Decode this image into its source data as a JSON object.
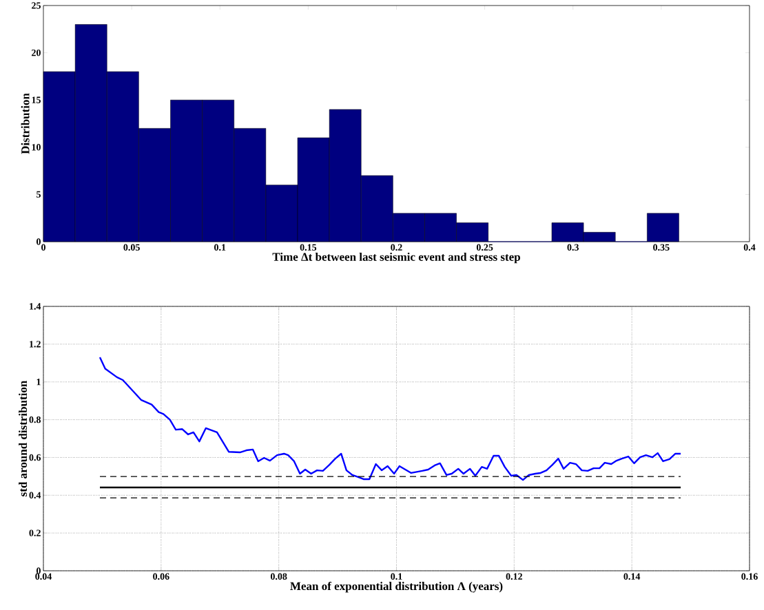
{
  "chart_data": [
    {
      "type": "histogram",
      "xlabel": "Time Δt between last seismic event and stress step",
      "ylabel": "Distribution",
      "bins": [
        0,
        0.018,
        0.036,
        0.054,
        0.072,
        0.09,
        0.108,
        0.126,
        0.144,
        0.162,
        0.18,
        0.198,
        0.216,
        0.234,
        0.252,
        0.27,
        0.288,
        0.306,
        0.324,
        0.342,
        0.36
      ],
      "values": [
        18,
        23,
        18,
        12,
        15,
        15,
        12,
        6,
        11,
        14,
        7,
        3,
        3,
        2,
        0,
        0,
        2,
        1,
        0,
        3
      ],
      "color": "#000080",
      "xlim": [
        0,
        0.4
      ],
      "xticks": [
        0,
        0.05,
        0.1,
        0.15,
        0.2,
        0.25,
        0.3,
        0.35,
        0.4
      ],
      "ylim": [
        0,
        25
      ],
      "yticks": [
        0,
        5,
        10,
        15,
        20,
        25
      ],
      "grid": false
    },
    {
      "type": "line",
      "xlabel": "Mean of exponential distribution Λ (years)",
      "ylabel": "std around distribution",
      "series": [
        {
          "color": "#0000ff",
          "line_style": "solid",
          "x": [
            0.0496,
            0.0505,
            0.0525,
            0.0535,
            0.0566,
            0.0584,
            0.0596,
            0.0604,
            0.0615,
            0.0625,
            0.0636,
            0.0646,
            0.0655,
            0.0665,
            0.0676,
            0.0695,
            0.0715,
            0.0734,
            0.0745,
            0.0756,
            0.0765,
            0.0775,
            0.0785,
            0.0797,
            0.0809,
            0.0816,
            0.0826,
            0.0836,
            0.0845,
            0.0855,
            0.0865,
            0.0875,
            0.0886,
            0.0896,
            0.0906,
            0.0915,
            0.0925,
            0.0935,
            0.0944,
            0.0954,
            0.0965,
            0.0975,
            0.0985,
            0.0996,
            0.1005,
            0.1025,
            0.1044,
            0.1054,
            0.1065,
            0.1074,
            0.1085,
            0.1094,
            0.1105,
            0.1114,
            0.1125,
            0.1134,
            0.1145,
            0.1154,
            0.1165,
            0.1174,
            0.1184,
            0.1195,
            0.1204,
            0.1215,
            0.1225,
            0.1236,
            0.1245,
            0.1255,
            0.1265,
            0.1275,
            0.1284,
            0.1295,
            0.1305,
            0.1315,
            0.1325,
            0.1335,
            0.1345,
            0.1354,
            0.1365,
            0.1374,
            0.1383,
            0.1394,
            0.1404,
            0.1414,
            0.1424,
            0.1435,
            0.1444,
            0.1453,
            0.1464,
            0.1474,
            0.1483
          ],
          "values": [
            1.13,
            1.07,
            1.025,
            1.01,
            0.905,
            0.88,
            0.84,
            0.83,
            0.8,
            0.747,
            0.75,
            0.722,
            0.733,
            0.685,
            0.755,
            0.733,
            0.63,
            0.627,
            0.638,
            0.642,
            0.58,
            0.598,
            0.583,
            0.612,
            0.62,
            0.612,
            0.58,
            0.514,
            0.536,
            0.514,
            0.532,
            0.529,
            0.561,
            0.594,
            0.62,
            0.532,
            0.507,
            0.496,
            0.485,
            0.485,
            0.565,
            0.532,
            0.554,
            0.514,
            0.554,
            0.518,
            0.529,
            0.536,
            0.558,
            0.569,
            0.507,
            0.514,
            0.54,
            0.514,
            0.54,
            0.503,
            0.55,
            0.54,
            0.609,
            0.609,
            0.55,
            0.503,
            0.507,
            0.481,
            0.507,
            0.514,
            0.518,
            0.532,
            0.561,
            0.594,
            0.54,
            0.572,
            0.565,
            0.532,
            0.529,
            0.543,
            0.543,
            0.572,
            0.565,
            0.583,
            0.594,
            0.605,
            0.569,
            0.601,
            0.612,
            0.601,
            0.623,
            0.58,
            0.591,
            0.62,
            0.62
          ]
        },
        {
          "color": "#000000",
          "line_style": "dashed",
          "x": [
            0.0496,
            0.1483
          ],
          "values": [
            0.499,
            0.499
          ]
        },
        {
          "color": "#000000",
          "line_style": "solid",
          "x": [
            0.0496,
            0.1483
          ],
          "values": [
            0.441,
            0.441
          ]
        },
        {
          "color": "#000000",
          "line_style": "dashed",
          "x": [
            0.0496,
            0.1483
          ],
          "values": [
            0.386,
            0.386
          ]
        }
      ],
      "xlim": [
        0.04,
        0.16
      ],
      "xticks": [
        0.04,
        0.06,
        0.08,
        0.1,
        0.12,
        0.14,
        0.16
      ],
      "ylim": [
        0,
        1.4
      ],
      "yticks": [
        0,
        0.2,
        0.4,
        0.6,
        0.8,
        1,
        1.2,
        1.4
      ],
      "grid": true,
      "marker": "none"
    }
  ]
}
